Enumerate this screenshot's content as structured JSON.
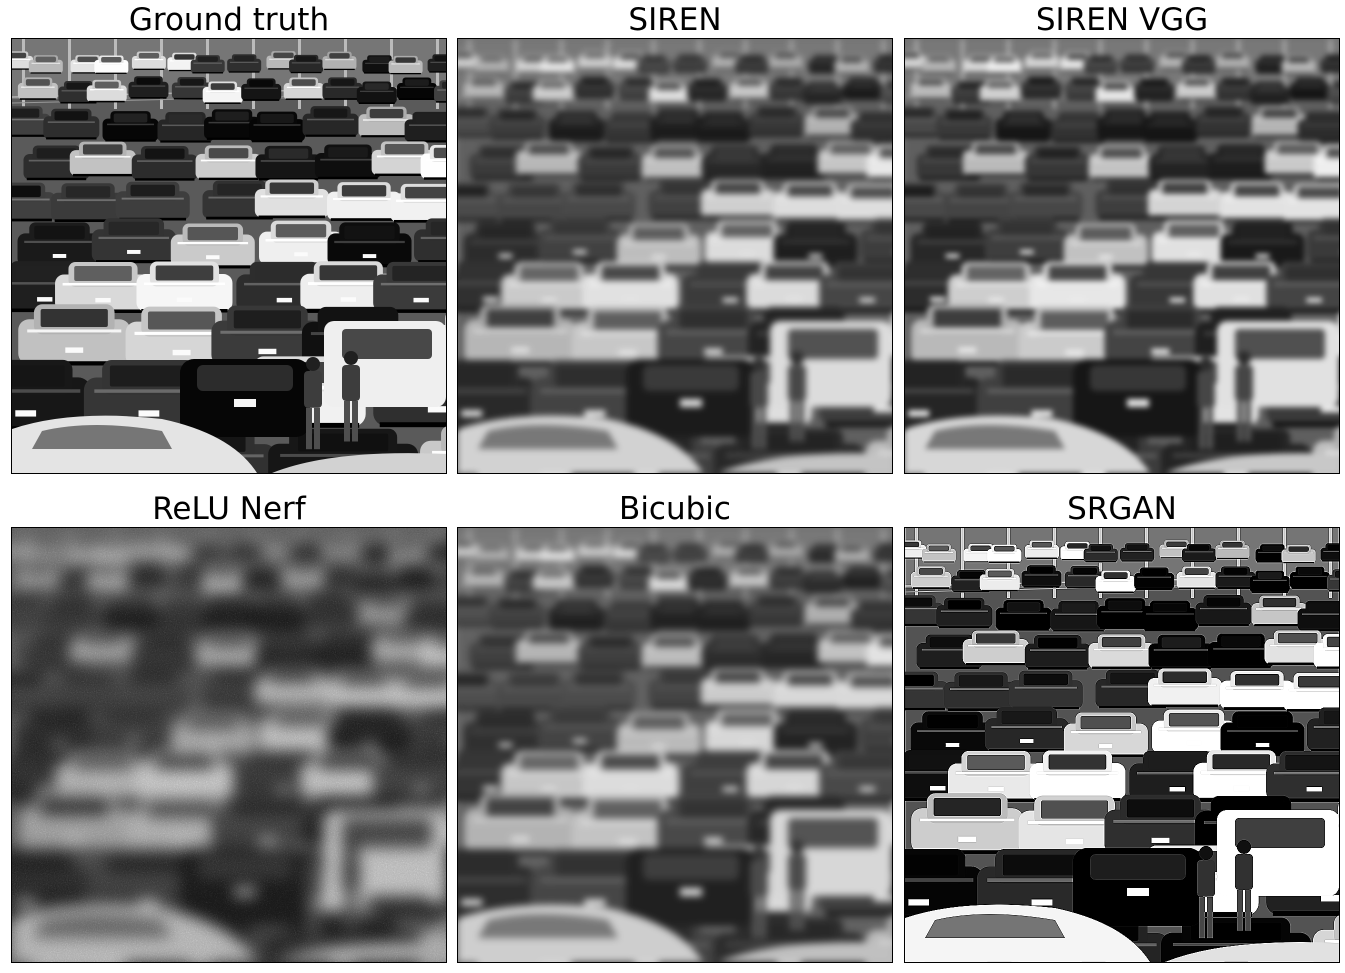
{
  "figure": {
    "panels": [
      {
        "id": "ground-truth",
        "title": "Ground truth",
        "blur": 0,
        "contrast": 1.15,
        "noise": 0,
        "sharpen": false
      },
      {
        "id": "siren",
        "title": "SIREN",
        "blur": 3.2,
        "contrast": 0.95,
        "noise": 0,
        "sharpen": false
      },
      {
        "id": "siren-vgg",
        "title": "SIREN VGG",
        "blur": 2.8,
        "contrast": 1.0,
        "noise": 0,
        "sharpen": false
      },
      {
        "id": "relu-nerf",
        "title": "ReLU Nerf",
        "blur": 7.5,
        "contrast": 0.8,
        "noise": 1,
        "sharpen": false
      },
      {
        "id": "bicubic",
        "title": "Bicubic",
        "blur": 3.6,
        "contrast": 0.9,
        "noise": 0,
        "sharpen": false
      },
      {
        "id": "srgan",
        "title": "SRGAN",
        "blur": 0,
        "contrast": 1.35,
        "noise": 0,
        "sharpen": true
      }
    ],
    "scene_description_icon": "parking-lot-photo",
    "colors": {
      "background": "#ffffff",
      "border": "#000000"
    }
  }
}
